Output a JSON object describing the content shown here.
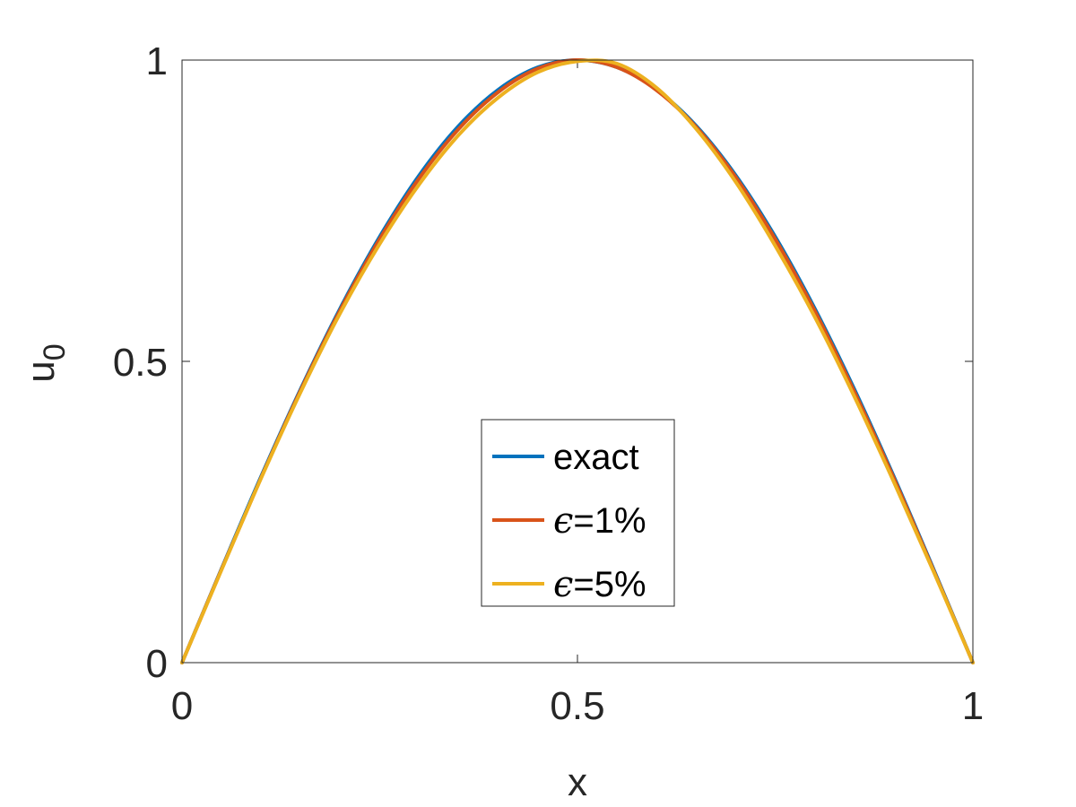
{
  "chart_data": {
    "type": "line",
    "xlabel": "x",
    "ylabel_base": "u",
    "ylabel_sub": "0",
    "xlim": [
      0,
      1
    ],
    "ylim": [
      0,
      1
    ],
    "xticks": [
      0,
      0.5,
      1
    ],
    "xtick_labels": [
      "0",
      "0.5",
      "1"
    ],
    "yticks": [
      0,
      0.5,
      1
    ],
    "ytick_labels": [
      "0",
      "0.5",
      "1"
    ],
    "grid": false,
    "legend_position": "center-bottom",
    "series": [
      {
        "name": "exact",
        "legend_symbol": "",
        "legend_text": "exact",
        "color": "#0072BD",
        "x": [
          0,
          0.05,
          0.1,
          0.15,
          0.2,
          0.25,
          0.3,
          0.35,
          0.4,
          0.45,
          0.5,
          0.55,
          0.6,
          0.65,
          0.7,
          0.75,
          0.8,
          0.85,
          0.9,
          0.95,
          1
        ],
        "y": [
          0,
          0.156,
          0.309,
          0.454,
          0.588,
          0.707,
          0.809,
          0.891,
          0.951,
          0.988,
          1.0,
          0.988,
          0.951,
          0.891,
          0.809,
          0.707,
          0.588,
          0.454,
          0.309,
          0.156,
          0
        ]
      },
      {
        "name": "ε=1%",
        "legend_symbol": "ϵ",
        "legend_text": "=1%",
        "color": "#D95319",
        "x": [
          0,
          0.05,
          0.1,
          0.15,
          0.2,
          0.25,
          0.3,
          0.35,
          0.4,
          0.45,
          0.5,
          0.55,
          0.6,
          0.65,
          0.7,
          0.75,
          0.8,
          0.85,
          0.9,
          0.95,
          1
        ],
        "y": [
          0,
          0.155,
          0.307,
          0.452,
          0.585,
          0.703,
          0.804,
          0.886,
          0.947,
          0.986,
          1.0,
          0.988,
          0.95,
          0.889,
          0.806,
          0.703,
          0.584,
          0.45,
          0.306,
          0.154,
          0
        ]
      },
      {
        "name": "ε=5%",
        "legend_symbol": "ϵ",
        "legend_text": "=5%",
        "color": "#EDB120",
        "x": [
          0,
          0.05,
          0.1,
          0.15,
          0.2,
          0.25,
          0.3,
          0.35,
          0.4,
          0.45,
          0.5,
          0.55,
          0.6,
          0.65,
          0.7,
          0.75,
          0.8,
          0.85,
          0.9,
          0.95,
          1
        ],
        "y": [
          0,
          0.154,
          0.306,
          0.449,
          0.58,
          0.695,
          0.794,
          0.876,
          0.938,
          0.98,
          0.998,
          0.994,
          0.954,
          0.886,
          0.798,
          0.692,
          0.574,
          0.442,
          0.3,
          0.152,
          0
        ]
      }
    ]
  }
}
